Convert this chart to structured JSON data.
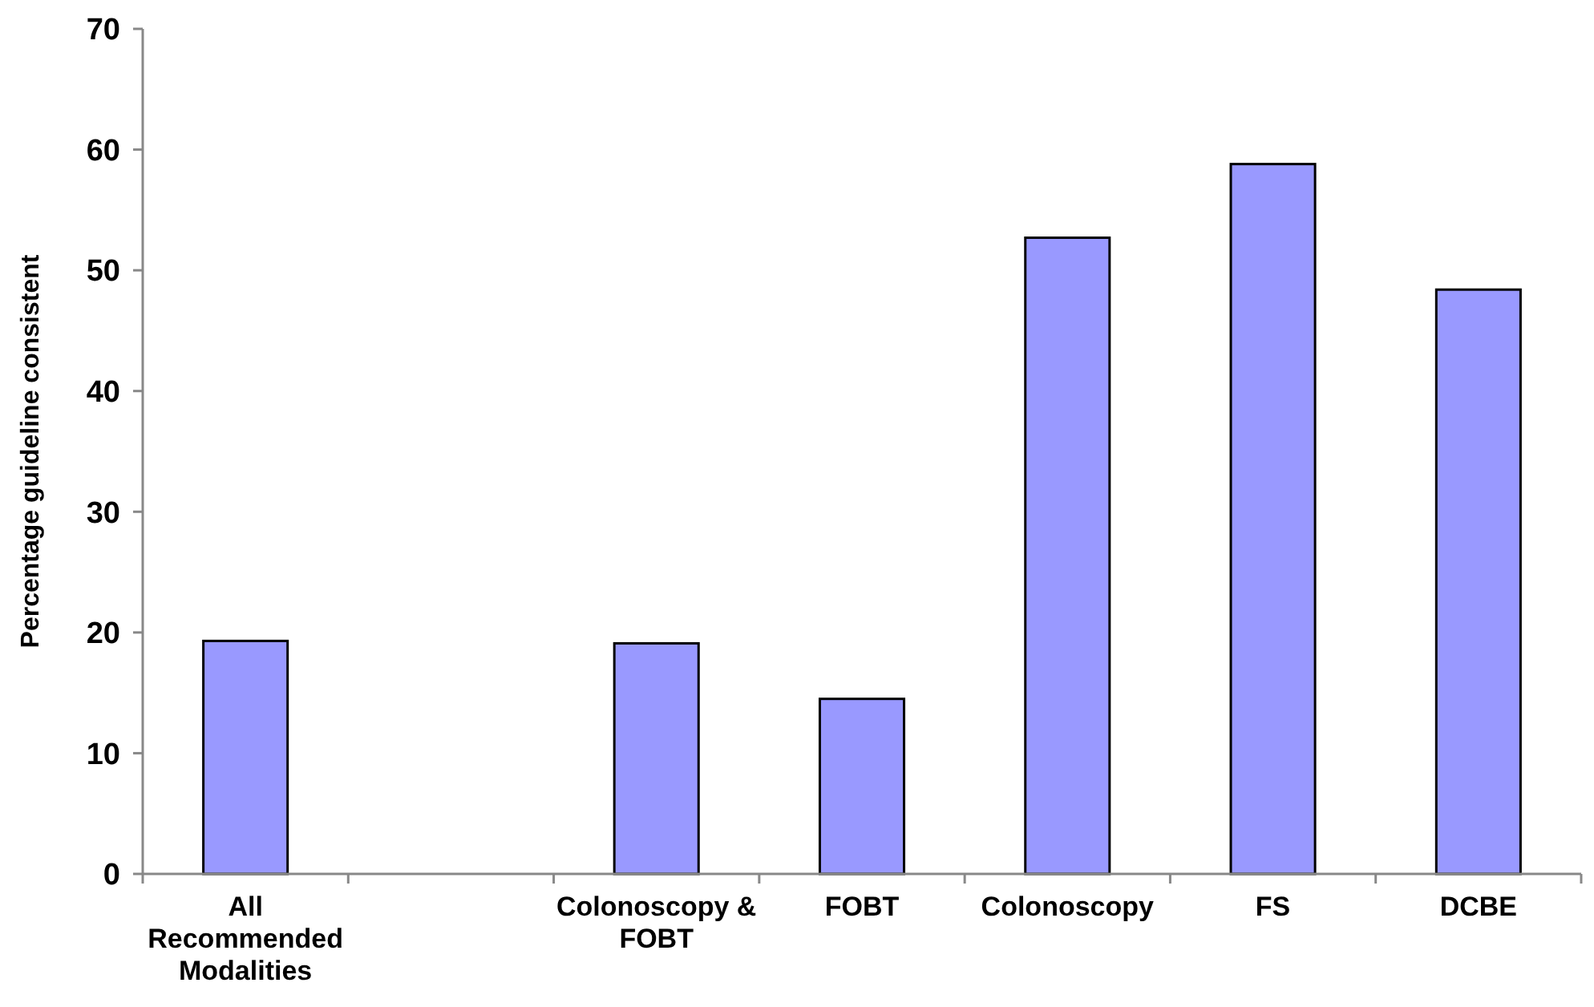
{
  "chart_data": {
    "type": "bar",
    "ylabel": "Percentage guideline consistent",
    "categories": [
      "All Recommended Modalities",
      null,
      "Colonoscopy & FOBT",
      "FOBT",
      "Colonoscopy",
      "FS",
      "DCBE"
    ],
    "values": [
      19.3,
      null,
      19.1,
      14.5,
      52.7,
      58.8,
      48.4
    ],
    "color": "#9999ff",
    "ylim": [
      0,
      70
    ],
    "yticks": [
      0,
      10,
      20,
      30,
      40,
      50,
      60,
      70
    ],
    "grid": false
  }
}
